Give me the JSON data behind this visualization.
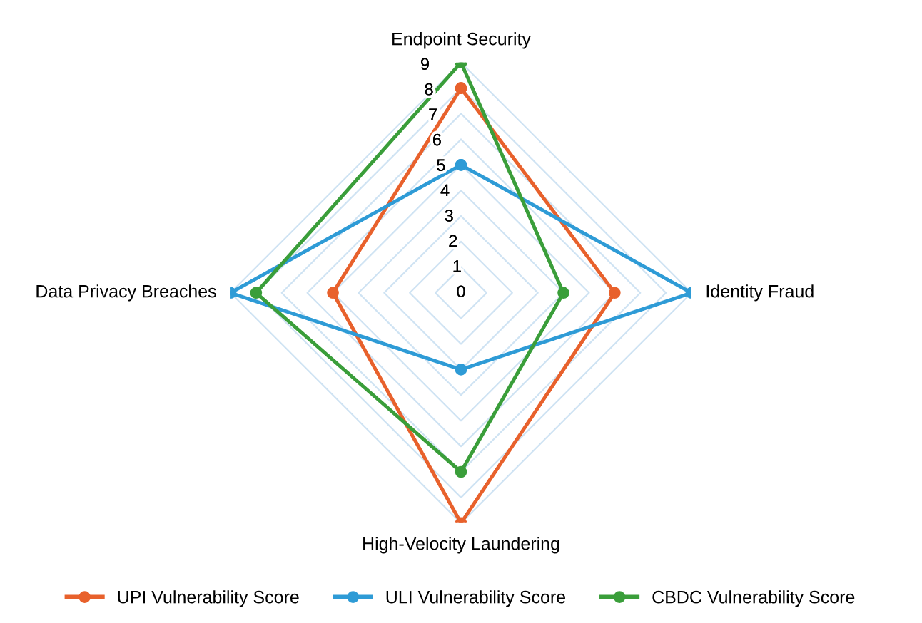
{
  "chart_data": {
    "type": "radar",
    "categories": [
      "Endpoint Security",
      "Identity Fraud",
      "High-Velocity Laundering",
      "Data Privacy Breaches"
    ],
    "series": [
      {
        "name": "UPI Vulnerability Score",
        "color": "#e8612c",
        "values": [
          8,
          6,
          9,
          5
        ]
      },
      {
        "name": "ULI Vulnerability Score",
        "color": "#2e9bd6",
        "values": [
          5,
          9,
          3,
          9
        ]
      },
      {
        "name": "CBDC Vulnerability Score",
        "color": "#3a9e3a",
        "values": [
          9,
          4,
          7,
          8
        ]
      }
    ],
    "ylim": [
      0,
      9
    ],
    "yticks": [
      0,
      1,
      2,
      3,
      4,
      5,
      6,
      7,
      8,
      9
    ],
    "grid": true,
    "legend": "bottom",
    "marker": "circle",
    "line_style": "solid"
  }
}
